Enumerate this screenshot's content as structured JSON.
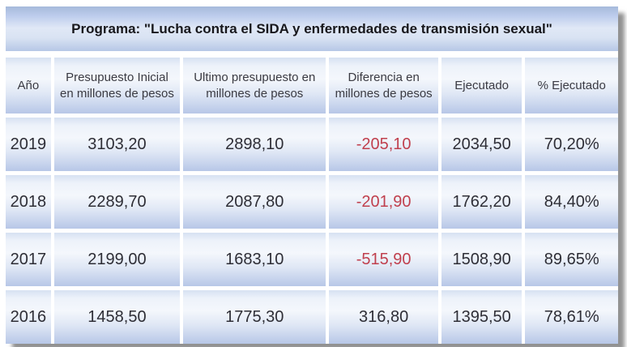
{
  "title_bar": {
    "title": "Programa: \"Lucha contra el SIDA y enfermedades de transmisión sexual\""
  },
  "colors": {
    "negative_value": "#c0404e",
    "cell_gradient_top": "#d7e1f2",
    "cell_gradient_bottom": "#b7c7e7",
    "title_gradient_top": "#a6badb",
    "title_gradient_bottom": "#b6c7e6"
  },
  "chart_data": {
    "type": "table",
    "title": "Programa: \"Lucha contra el SIDA y enfermedades de transmisión sexual\"",
    "columns": [
      "Año",
      "Presupuesto Inicial en millones de pesos",
      "Ultimo presupuesto en millones de pesos",
      "Diferencia en millones de pesos",
      "Ejecutado",
      "% Ejecutado"
    ],
    "rows": [
      [
        "2019",
        "3103,20",
        "2898,10",
        "-205,10",
        "2034,50",
        "70,20%"
      ],
      [
        "2018",
        "2289,70",
        "2087,80",
        "-201,90",
        "1762,20",
        "84,40%"
      ],
      [
        "2017",
        "2199,00",
        "1683,10",
        "-515,90",
        "1508,90",
        "89,65%"
      ],
      [
        "2016",
        "1458,50",
        "1775,30",
        "316,80",
        "1395,50",
        "78,61%"
      ]
    ],
    "notes": "negative values in 'Diferencia en millones de pesos' are shown in red"
  }
}
